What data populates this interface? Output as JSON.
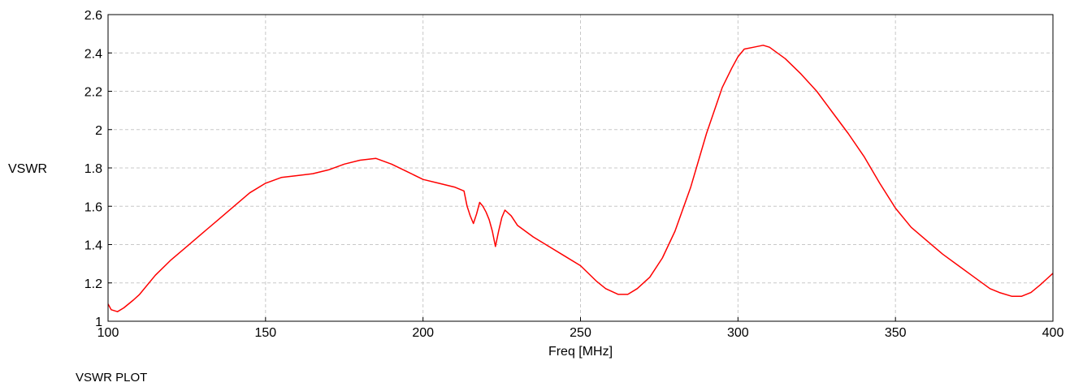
{
  "chart_data": {
    "type": "line",
    "title": "",
    "xlabel": "Freq [MHz]",
    "ylabel": "VSWR",
    "xlim": [
      100,
      400
    ],
    "ylim": [
      1,
      2.6
    ],
    "xticks": [
      100,
      150,
      200,
      250,
      300,
      350,
      400
    ],
    "yticks": [
      1,
      1.2,
      1.4,
      1.6,
      1.8,
      2,
      2.2,
      2.4,
      2.6
    ],
    "xtick_labels": [
      "100",
      "150",
      "200",
      "250",
      "300",
      "350",
      "400"
    ],
    "ytick_labels": [
      "1",
      "1.2",
      "1.4",
      "1.6",
      "1.8",
      "2",
      "2.2",
      "2.4",
      "2.6"
    ],
    "grid": true,
    "series": [
      {
        "color": "#ff0000",
        "x": [
          100,
          101,
          103,
          105,
          108,
          110,
          115,
          120,
          125,
          130,
          135,
          140,
          145,
          150,
          155,
          160,
          165,
          170,
          175,
          180,
          185,
          190,
          195,
          200,
          205,
          210,
          213,
          214,
          215,
          216,
          217,
          218,
          219,
          220,
          221,
          222,
          223,
          224,
          225,
          226,
          228,
          230,
          235,
          240,
          245,
          250,
          255,
          258,
          262,
          265,
          268,
          272,
          276,
          280,
          285,
          290,
          295,
          298,
          300,
          302,
          305,
          308,
          310,
          315,
          320,
          325,
          330,
          335,
          340,
          345,
          350,
          355,
          360,
          365,
          370,
          375,
          380,
          383,
          387,
          390,
          393,
          396,
          398,
          400
        ],
        "y": [
          1.09,
          1.06,
          1.05,
          1.07,
          1.11,
          1.14,
          1.24,
          1.32,
          1.39,
          1.46,
          1.53,
          1.6,
          1.67,
          1.72,
          1.75,
          1.76,
          1.77,
          1.79,
          1.82,
          1.84,
          1.85,
          1.82,
          1.78,
          1.74,
          1.72,
          1.7,
          1.68,
          1.6,
          1.55,
          1.51,
          1.56,
          1.62,
          1.6,
          1.57,
          1.53,
          1.47,
          1.39,
          1.47,
          1.54,
          1.58,
          1.55,
          1.5,
          1.44,
          1.39,
          1.34,
          1.29,
          1.21,
          1.17,
          1.14,
          1.14,
          1.17,
          1.23,
          1.33,
          1.47,
          1.7,
          1.98,
          2.22,
          2.32,
          2.38,
          2.42,
          2.43,
          2.44,
          2.43,
          2.37,
          2.29,
          2.2,
          2.09,
          1.98,
          1.86,
          1.72,
          1.59,
          1.49,
          1.42,
          1.35,
          1.29,
          1.23,
          1.17,
          1.15,
          1.13,
          1.13,
          1.15,
          1.19,
          1.22,
          1.25
        ]
      }
    ]
  },
  "caption": "VSWR PLOT"
}
